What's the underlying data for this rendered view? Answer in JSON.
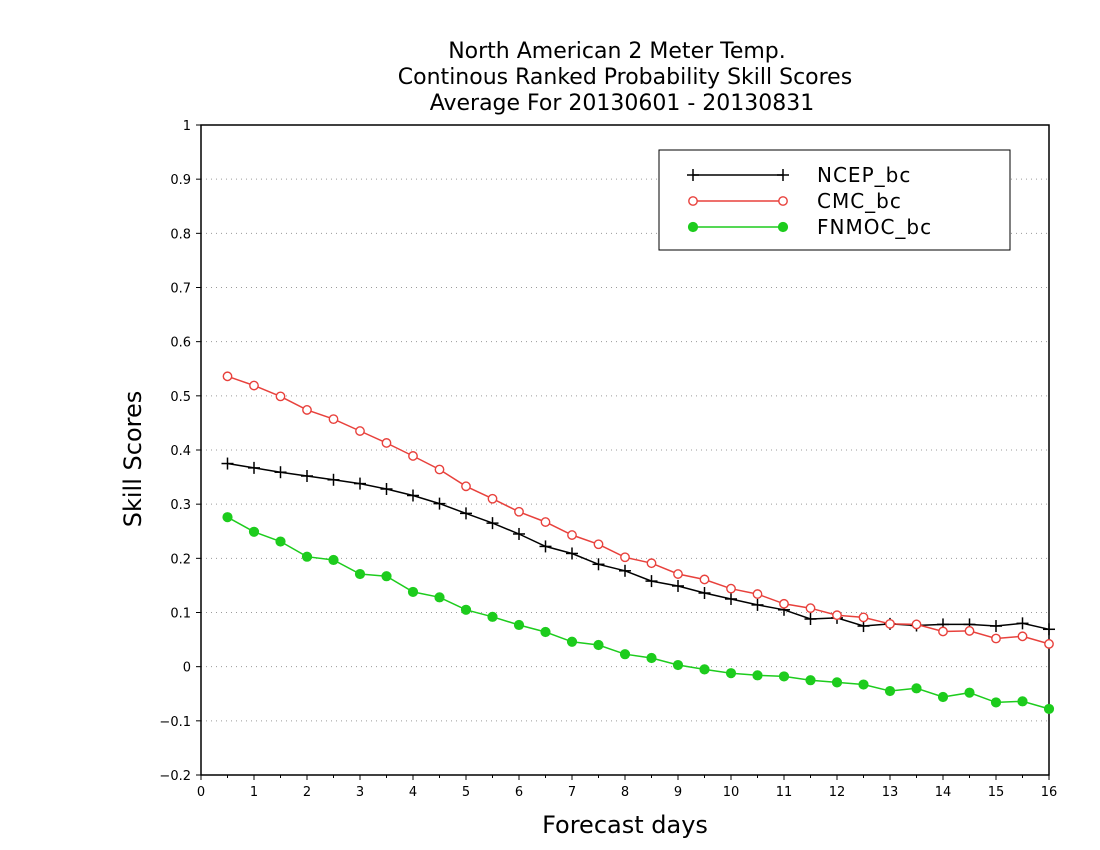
{
  "chart_data": {
    "type": "line",
    "title": [
      "North American 2 Meter Temp.",
      "Continous Ranked Probability Skill Scores",
      "Average For 20130601 - 20130831"
    ],
    "xlabel": "Forecast days",
    "ylabel": "Skill Scores",
    "xlim": [
      0,
      16
    ],
    "ylim": [
      -0.2,
      1
    ],
    "xticks": [
      0,
      1,
      2,
      3,
      4,
      5,
      6,
      7,
      8,
      9,
      10,
      11,
      12,
      13,
      14,
      15,
      16
    ],
    "xtick_labels": [
      "0",
      "1",
      "2",
      "3",
      "4",
      "5",
      "6",
      "7",
      "8",
      "9",
      "10",
      "11",
      "12",
      "13",
      "14",
      "15",
      "16"
    ],
    "yticks": [
      -0.2,
      -0.1,
      0,
      0.1,
      0.2,
      0.3,
      0.4,
      0.5,
      0.6,
      0.7,
      0.8,
      0.9,
      1
    ],
    "ytick_labels": [
      "−0.2",
      "−0.1",
      "0",
      "0.1",
      "0.2",
      "0.3",
      "0.4",
      "0.5",
      "0.6",
      "0.7",
      "0.8",
      "0.9",
      "1"
    ],
    "grid": "horizontal-dotted",
    "legend_position": "top-right",
    "x": [
      0.5,
      1,
      1.5,
      2,
      2.5,
      3,
      3.5,
      4,
      4.5,
      5,
      5.5,
      6,
      6.5,
      7,
      7.5,
      8,
      8.5,
      9,
      9.5,
      10,
      10.5,
      11,
      11.5,
      12,
      12.5,
      13,
      13.5,
      14,
      14.5,
      15,
      15.5,
      16
    ],
    "series": [
      {
        "name": "NCEP_bc",
        "color": "#000000",
        "marker": "plus",
        "values": [
          0.375,
          0.367,
          0.359,
          0.352,
          0.345,
          0.338,
          0.328,
          0.316,
          0.301,
          0.283,
          0.265,
          0.245,
          0.222,
          0.209,
          0.189,
          0.177,
          0.158,
          0.149,
          0.136,
          0.125,
          0.114,
          0.105,
          0.088,
          0.09,
          0.075,
          0.079,
          0.076,
          0.078,
          0.078,
          0.075,
          0.08,
          0.069
        ]
      },
      {
        "name": "CMC_bc",
        "color": "#e8413c",
        "marker": "open-circle",
        "values": [
          0.536,
          0.519,
          0.499,
          0.474,
          0.457,
          0.435,
          0.413,
          0.389,
          0.364,
          0.333,
          0.31,
          0.286,
          0.267,
          0.243,
          0.226,
          0.202,
          0.191,
          0.171,
          0.161,
          0.144,
          0.134,
          0.116,
          0.108,
          0.095,
          0.091,
          0.079,
          0.078,
          0.065,
          0.066,
          0.052,
          0.056,
          0.042
        ]
      },
      {
        "name": "FNMOC_bc",
        "color": "#1dcc1d",
        "marker": "filled-circle",
        "values": [
          0.276,
          0.249,
          0.231,
          0.203,
          0.197,
          0.171,
          0.167,
          0.138,
          0.128,
          0.105,
          0.092,
          0.077,
          0.064,
          0.046,
          0.04,
          0.023,
          0.016,
          0.003,
          -0.005,
          -0.012,
          -0.016,
          -0.018,
          -0.025,
          -0.029,
          -0.033,
          -0.045,
          -0.04,
          -0.056,
          -0.048,
          -0.066,
          -0.064,
          -0.078
        ]
      }
    ]
  }
}
